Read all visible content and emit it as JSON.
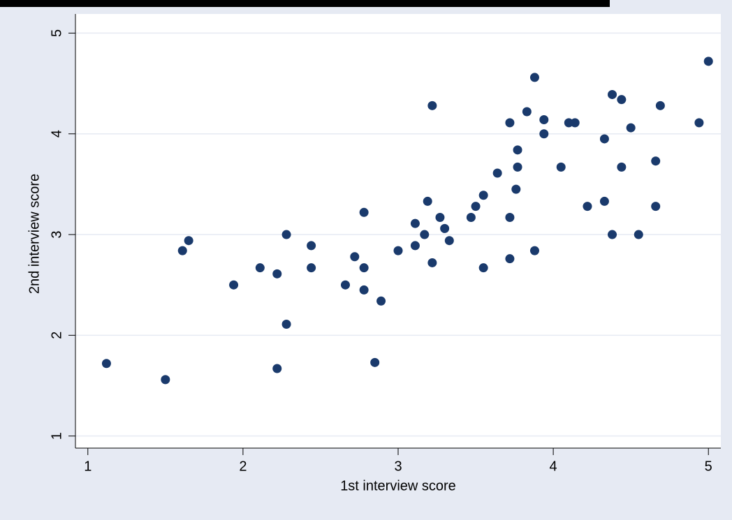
{
  "chart_data": {
    "type": "scatter",
    "x_label": "1st interview score",
    "y_label": "2nd interview score",
    "color": "#1a3a6c",
    "grid": true,
    "xlim": [
      0.92,
      5.08
    ],
    "ylim": [
      0.88,
      5.19
    ],
    "xticks": [
      1,
      2,
      3,
      4,
      5
    ],
    "yticks": [
      1,
      2,
      3,
      4,
      5
    ],
    "x": [
      1.12,
      1.5,
      1.61,
      1.65,
      1.94,
      2.11,
      2.22,
      2.22,
      2.28,
      2.28,
      2.44,
      2.44,
      2.66,
      2.72,
      2.78,
      2.78,
      2.78,
      2.85,
      2.89,
      3.0,
      3.11,
      3.11,
      3.17,
      3.19,
      3.22,
      3.22,
      3.27,
      3.3,
      3.33,
      3.47,
      3.5,
      3.55,
      3.55,
      3.64,
      3.72,
      3.72,
      3.72,
      3.76,
      3.77,
      3.77,
      3.83,
      3.88,
      3.88,
      3.94,
      3.94,
      4.05,
      4.1,
      4.14,
      4.22,
      4.33,
      4.33,
      4.38,
      4.38,
      4.44,
      4.44,
      4.5,
      4.55,
      4.66,
      4.66,
      4.69,
      4.94,
      5.0
    ],
    "y": [
      1.72,
      1.56,
      2.84,
      2.94,
      2.5,
      2.67,
      2.61,
      1.67,
      3.0,
      2.11,
      2.89,
      2.67,
      2.5,
      2.78,
      3.22,
      2.67,
      2.45,
      1.73,
      2.34,
      2.84,
      3.11,
      2.89,
      3.0,
      3.33,
      4.28,
      2.72,
      3.17,
      3.06,
      2.94,
      3.17,
      3.28,
      3.39,
      2.67,
      3.61,
      4.11,
      3.17,
      2.76,
      3.45,
      3.84,
      3.67,
      4.22,
      4.56,
      2.84,
      4.14,
      4.0,
      3.67,
      4.11,
      4.11,
      3.28,
      3.95,
      3.33,
      4.39,
      3.0,
      4.34,
      3.67,
      4.06,
      3.0,
      3.73,
      3.28,
      4.28,
      4.11,
      4.72
    ]
  }
}
